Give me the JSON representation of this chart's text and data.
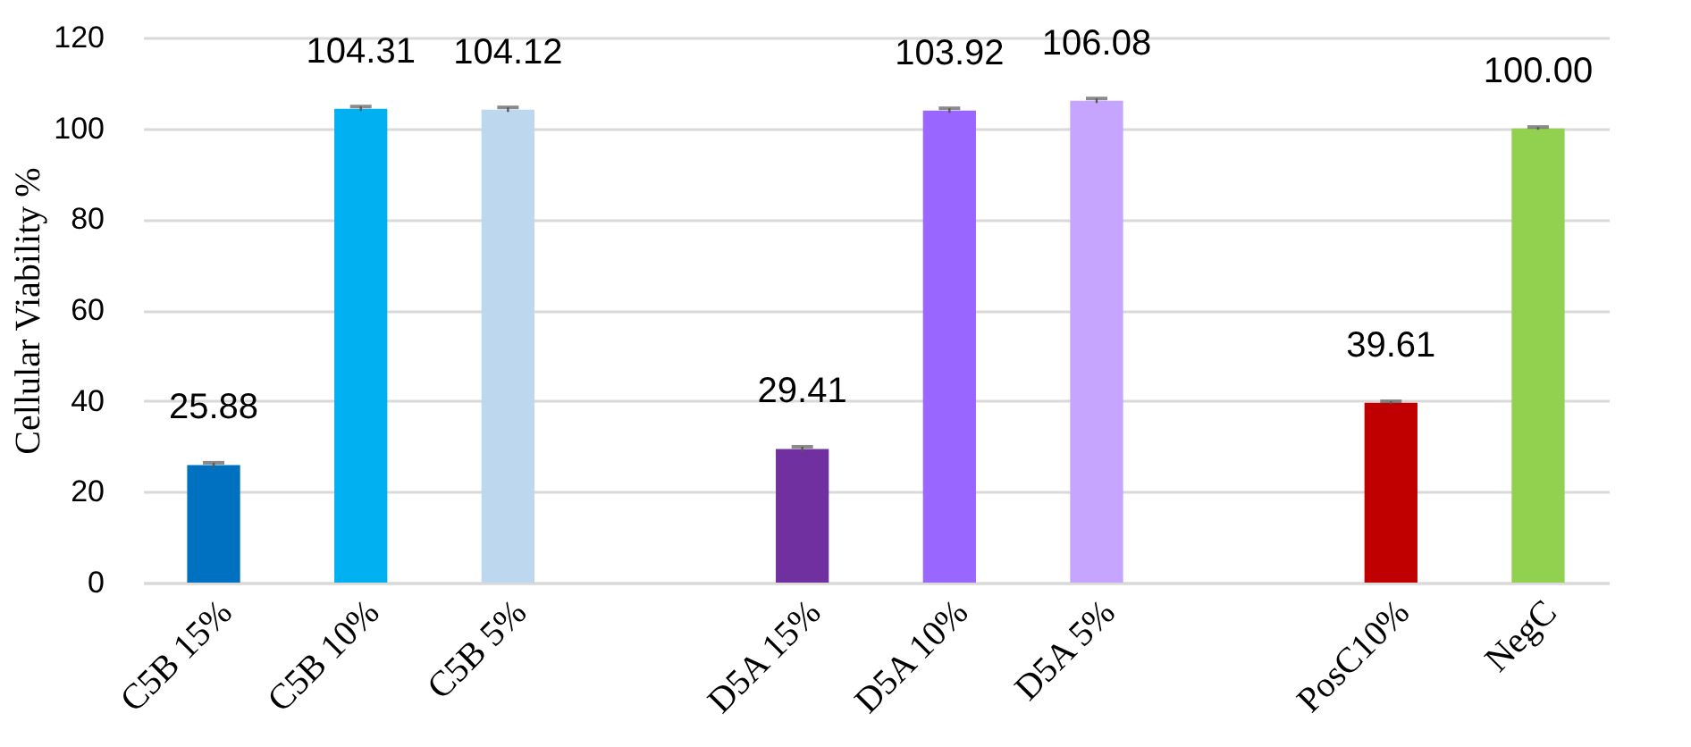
{
  "chart_data": {
    "type": "bar",
    "ylabel": "Cellular Viability %",
    "categories": [
      "C5B 15%",
      "C5B 10%",
      "C5B 5%",
      null,
      "D5A 15%",
      "D5A 10%",
      "D5A 5%",
      null,
      "PosC10%",
      "NegC"
    ],
    "values": [
      25.88,
      104.31,
      104.12,
      null,
      29.41,
      103.92,
      106.08,
      null,
      39.61,
      100.0
    ],
    "errors": [
      0.5,
      0.5,
      0.5,
      null,
      0.5,
      0.5,
      0.5,
      null,
      0.3,
      0.3
    ],
    "colors": [
      "#0070c0",
      "#00b0f0",
      "#bdd7ee",
      "#ffffff",
      "#7030a0",
      "#9966ff",
      "#c5a5ff",
      "#ffffff",
      "#c00000",
      "#92d050"
    ],
    "ylim": [
      0,
      120
    ],
    "yticks": [
      0,
      20,
      40,
      60,
      80,
      100,
      120
    ],
    "grid": "y",
    "value_labels": [
      "25.88",
      "104.31",
      "104.12",
      null,
      "29.41",
      "103.92",
      "106.08",
      null,
      "39.61",
      "100.00"
    ]
  }
}
